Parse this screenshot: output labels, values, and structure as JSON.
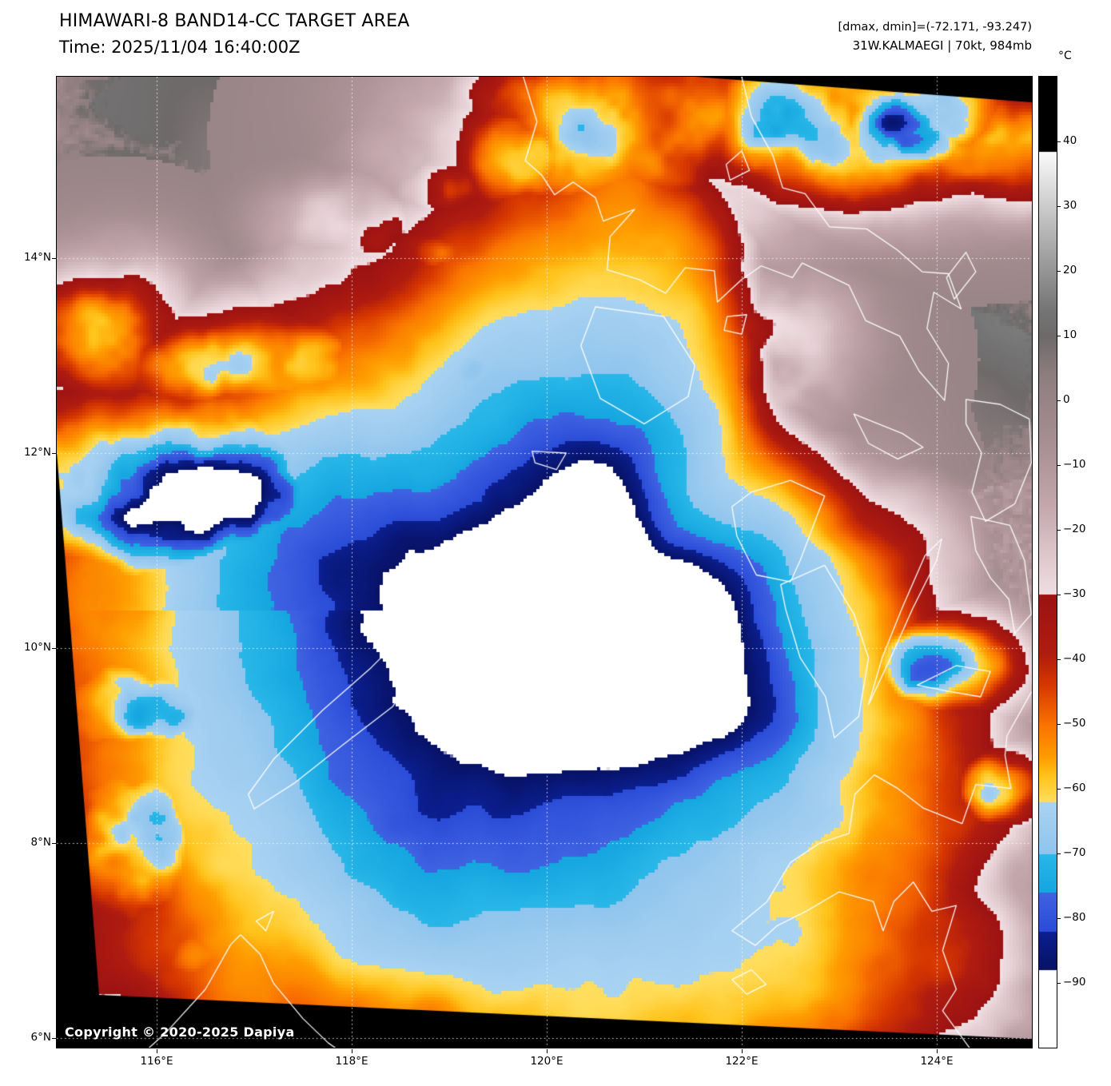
{
  "header": {
    "title": "HIMAWARI-8 BAND14-CC TARGET AREA",
    "time_line": "Time: 2025/11/04 16:40:00Z",
    "dmax_dmin_line": "[dmax, dmin]=(-72.171, -93.247)",
    "storm_line": "31W.KALMAEGI | 70kt, 984mb"
  },
  "readouts": {
    "dmax": -72.171,
    "dmin": -93.247,
    "storm_id": "31W",
    "storm_name": "KALMAEGI",
    "intensity_kt": 70,
    "pressure_mb": 984
  },
  "map": {
    "copyright": "Copyright © 2020-2025 Dapiya"
  },
  "axes": {
    "lat": [
      {
        "label": "14°N",
        "value": 14
      },
      {
        "label": "12°N",
        "value": 12
      },
      {
        "label": "10°N",
        "value": 10
      },
      {
        "label": "8°N",
        "value": 8
      },
      {
        "label": "6°N",
        "value": 6
      }
    ],
    "lon": [
      {
        "label": "116°E",
        "value": 116
      },
      {
        "label": "118°E",
        "value": 118
      },
      {
        "label": "120°E",
        "value": 120
      },
      {
        "label": "122°E",
        "value": 122
      },
      {
        "label": "124°E",
        "value": 124
      }
    ]
  },
  "colorbar": {
    "unit": "°C",
    "domain": [
      50,
      -100
    ],
    "ticks": [
      {
        "label": "40",
        "value": 40
      },
      {
        "label": "30",
        "value": 30
      },
      {
        "label": "20",
        "value": 20
      },
      {
        "label": "10",
        "value": 10
      },
      {
        "label": "0",
        "value": 0
      },
      {
        "label": "−10",
        "value": -10
      },
      {
        "label": "−20",
        "value": -20
      },
      {
        "label": "−30",
        "value": -30
      },
      {
        "label": "−40",
        "value": -40
      },
      {
        "label": "−50",
        "value": -50
      },
      {
        "label": "−60",
        "value": -60
      },
      {
        "label": "−70",
        "value": -70
      },
      {
        "label": "−80",
        "value": -80
      },
      {
        "label": "−90",
        "value": -90
      }
    ],
    "palette": [
      [
        50,
        "#000000"
      ],
      [
        38.5,
        "#000000"
      ],
      [
        38.4,
        "#fbfbfb"
      ],
      [
        26,
        "#b6b6b6"
      ],
      [
        14,
        "#757575"
      ],
      [
        10,
        "#6e6a6a"
      ],
      [
        4,
        "#8e7e80"
      ],
      [
        -6,
        "#a78e92"
      ],
      [
        -16,
        "#c3a7ad"
      ],
      [
        -24,
        "#dfc8cd"
      ],
      [
        -29.9,
        "#efdfe2"
      ],
      [
        -30,
        "#9c1313"
      ],
      [
        -39,
        "#b01c10"
      ],
      [
        -44,
        "#d83800"
      ],
      [
        -50,
        "#fa7300"
      ],
      [
        -55,
        "#ff9d00"
      ],
      [
        -58,
        "#ffc41c"
      ],
      [
        -62,
        "#ffdf60"
      ],
      [
        -62.01,
        "#a9d3f2"
      ],
      [
        -70,
        "#90c5ee"
      ],
      [
        -70.01,
        "#29b8e8"
      ],
      [
        -76,
        "#16a6e0"
      ],
      [
        -76.01,
        "#4063e2"
      ],
      [
        -82,
        "#2b4cd8"
      ],
      [
        -82.01,
        "#0b1f90"
      ],
      [
        -88,
        "#081265"
      ],
      [
        -88.01,
        "#ffffff"
      ],
      [
        -100,
        "#ffffff"
      ]
    ]
  }
}
